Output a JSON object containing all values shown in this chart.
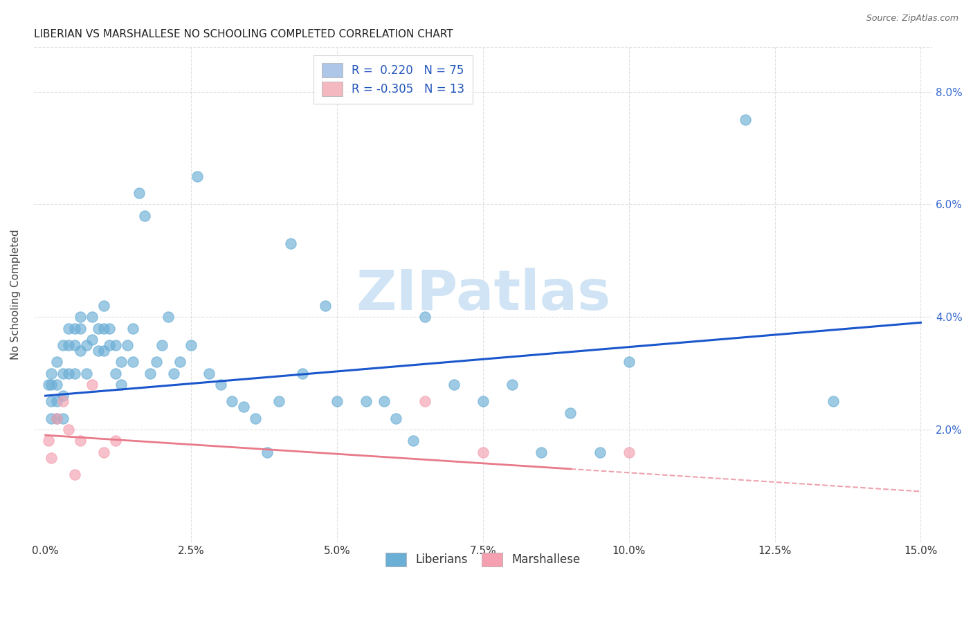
{
  "title": "LIBERIAN VS MARSHALLESE NO SCHOOLING COMPLETED CORRELATION CHART",
  "source": "Source: ZipAtlas.com",
  "ylabel": "No Schooling Completed",
  "ytick_labels": [
    "2.0%",
    "4.0%",
    "6.0%",
    "8.0%"
  ],
  "ytick_values": [
    0.02,
    0.04,
    0.06,
    0.08
  ],
  "xtick_values": [
    0.0,
    0.025,
    0.05,
    0.075,
    0.1,
    0.125,
    0.15
  ],
  "xtick_labels": [
    "0.0%",
    "2.5%",
    "5.0%",
    "7.5%",
    "10.0%",
    "12.5%",
    "15.0%"
  ],
  "xlim": [
    -0.002,
    0.152
  ],
  "ylim": [
    0.0,
    0.088
  ],
  "legend_line1": "R =  0.220   N = 75",
  "legend_line2": "R = -0.305   N = 13",
  "legend_color1": "#aec6e8",
  "legend_color2": "#f4b8c1",
  "scatter_color_blue": "#6baed6",
  "scatter_color_pink": "#f4a0b0",
  "trendline_blue": "#1a56cc",
  "trendline_pink": "#e87a8a",
  "watermark": "ZIPatlas",
  "watermark_color": "#d0e4f5",
  "blue_trendline_x0": 0.0,
  "blue_trendline_y0": 0.026,
  "blue_trendline_x1": 0.15,
  "blue_trendline_y1": 0.039,
  "pink_trendline_x0": 0.0,
  "pink_trendline_y0": 0.019,
  "pink_trendline_x1": 0.15,
  "pink_trendline_y1": 0.009,
  "blue_points_x": [
    0.0005,
    0.001,
    0.001,
    0.001,
    0.001,
    0.002,
    0.002,
    0.002,
    0.002,
    0.003,
    0.003,
    0.003,
    0.003,
    0.004,
    0.004,
    0.004,
    0.005,
    0.005,
    0.005,
    0.006,
    0.006,
    0.006,
    0.007,
    0.007,
    0.008,
    0.008,
    0.009,
    0.009,
    0.01,
    0.01,
    0.01,
    0.011,
    0.011,
    0.012,
    0.012,
    0.013,
    0.013,
    0.014,
    0.015,
    0.015,
    0.016,
    0.017,
    0.018,
    0.019,
    0.02,
    0.021,
    0.022,
    0.023,
    0.025,
    0.026,
    0.028,
    0.03,
    0.032,
    0.034,
    0.036,
    0.038,
    0.04,
    0.042,
    0.044,
    0.048,
    0.05,
    0.055,
    0.058,
    0.06,
    0.063,
    0.065,
    0.07,
    0.075,
    0.08,
    0.085,
    0.09,
    0.095,
    0.1,
    0.12,
    0.135
  ],
  "blue_points_y": [
    0.028,
    0.03,
    0.028,
    0.025,
    0.022,
    0.032,
    0.028,
    0.025,
    0.022,
    0.035,
    0.03,
    0.026,
    0.022,
    0.038,
    0.035,
    0.03,
    0.038,
    0.035,
    0.03,
    0.04,
    0.038,
    0.034,
    0.035,
    0.03,
    0.04,
    0.036,
    0.038,
    0.034,
    0.042,
    0.038,
    0.034,
    0.038,
    0.035,
    0.035,
    0.03,
    0.032,
    0.028,
    0.035,
    0.038,
    0.032,
    0.062,
    0.058,
    0.03,
    0.032,
    0.035,
    0.04,
    0.03,
    0.032,
    0.035,
    0.065,
    0.03,
    0.028,
    0.025,
    0.024,
    0.022,
    0.016,
    0.025,
    0.053,
    0.03,
    0.042,
    0.025,
    0.025,
    0.025,
    0.022,
    0.018,
    0.04,
    0.028,
    0.025,
    0.028,
    0.016,
    0.023,
    0.016,
    0.032,
    0.075,
    0.025
  ],
  "pink_points_x": [
    0.0005,
    0.001,
    0.002,
    0.003,
    0.004,
    0.005,
    0.006,
    0.008,
    0.01,
    0.012,
    0.065,
    0.075,
    0.1
  ],
  "pink_points_y": [
    0.018,
    0.015,
    0.022,
    0.025,
    0.02,
    0.012,
    0.018,
    0.028,
    0.016,
    0.018,
    0.025,
    0.016,
    0.016
  ],
  "background_color": "#ffffff",
  "grid_color": "#cccccc",
  "grid_alpha": 0.6
}
